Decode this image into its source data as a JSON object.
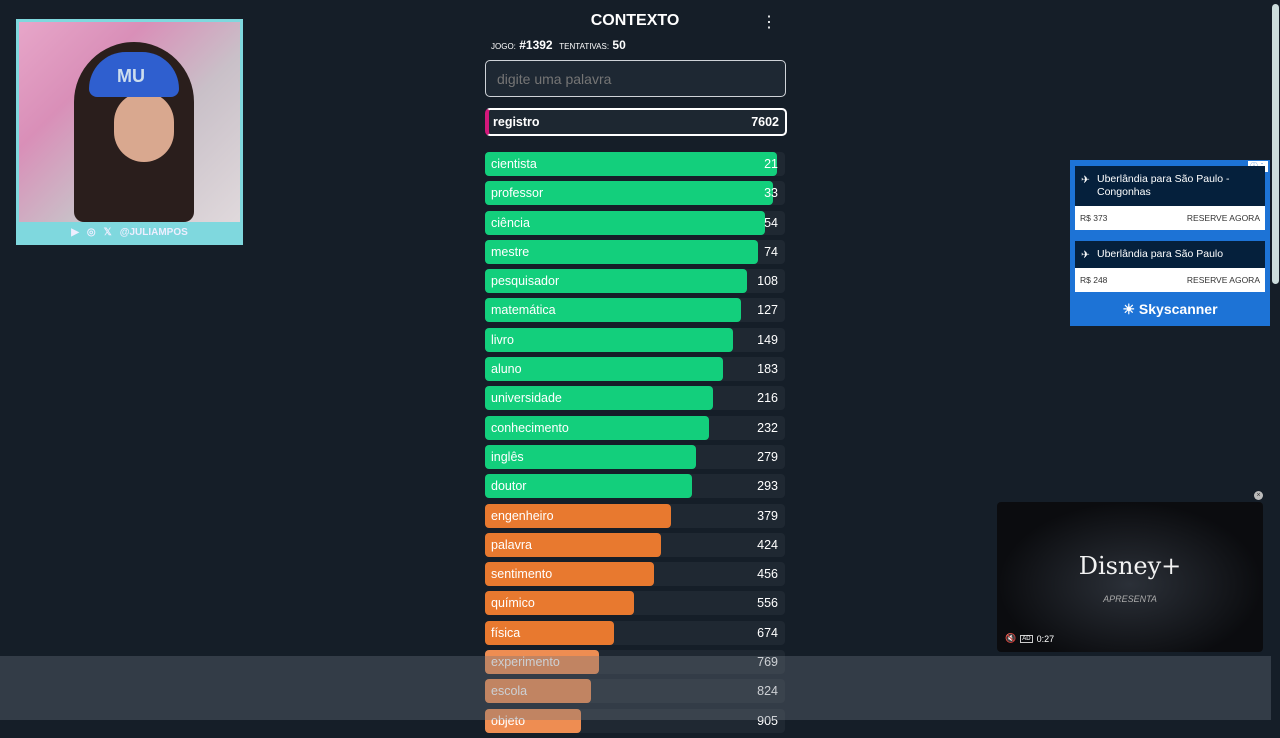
{
  "stream": {
    "handle": "@JULIAMPOS",
    "cap_text": "MU"
  },
  "header": {
    "title": "CONTEXTO",
    "game_label": "JOGO:",
    "game": "#1392",
    "tries_label": "TENTATIVAS:",
    "tries": "50"
  },
  "search": {
    "placeholder": "digite uma palavra",
    "value": ""
  },
  "last_guess": {
    "word": "registro",
    "rank": "7602"
  },
  "colors": {
    "green": "#13cf7c",
    "orange": "#e8792f",
    "light_orange": "#ee8d52",
    "highlight": "#d3187b"
  },
  "guesses": [
    {
      "word": "cientista",
      "rank": "21",
      "proximity": 0.973,
      "color": "green"
    },
    {
      "word": "professor",
      "rank": "33",
      "proximity": 0.96,
      "color": "green"
    },
    {
      "word": "ciência",
      "rank": "54",
      "proximity": 0.933,
      "color": "green"
    },
    {
      "word": "mestre",
      "rank": "74",
      "proximity": 0.91,
      "color": "green"
    },
    {
      "word": "pesquisador",
      "rank": "108",
      "proximity": 0.873,
      "color": "green"
    },
    {
      "word": "matemática",
      "rank": "127",
      "proximity": 0.853,
      "color": "green"
    },
    {
      "word": "livro",
      "rank": "149",
      "proximity": 0.827,
      "color": "green"
    },
    {
      "word": "aluno",
      "rank": "183",
      "proximity": 0.793,
      "color": "green"
    },
    {
      "word": "universidade",
      "rank": "216",
      "proximity": 0.76,
      "color": "green"
    },
    {
      "word": "conhecimento",
      "rank": "232",
      "proximity": 0.747,
      "color": "green"
    },
    {
      "word": "inglês",
      "rank": "279",
      "proximity": 0.703,
      "color": "green"
    },
    {
      "word": "doutor",
      "rank": "293",
      "proximity": 0.69,
      "color": "green"
    },
    {
      "word": "engenheiro",
      "rank": "379",
      "proximity": 0.62,
      "color": "orange"
    },
    {
      "word": "palavra",
      "rank": "424",
      "proximity": 0.587,
      "color": "orange"
    },
    {
      "word": "sentimento",
      "rank": "456",
      "proximity": 0.563,
      "color": "orange"
    },
    {
      "word": "químico",
      "rank": "556",
      "proximity": 0.497,
      "color": "orange"
    },
    {
      "word": "física",
      "rank": "674",
      "proximity": 0.43,
      "color": "orange"
    },
    {
      "word": "experimento",
      "rank": "769",
      "proximity": 0.38,
      "color": "light_orange"
    },
    {
      "word": "escola",
      "rank": "824",
      "proximity": 0.353,
      "color": "light_orange"
    },
    {
      "word": "objeto",
      "rank": "905",
      "proximity": 0.32,
      "color": "light_orange"
    }
  ],
  "ad": {
    "cards": [
      {
        "route": "Uberlândia para São Paulo - Congonhas",
        "price": "R$ 373",
        "cta": "RESERVE AGORA"
      },
      {
        "route": "Uberlândia para São Paulo",
        "price": "R$ 248",
        "cta": "RESERVE AGORA"
      }
    ],
    "brand": "Skyscanner"
  },
  "video_ad": {
    "logo": "Disney+",
    "subtitle": "APRESENTA",
    "badge": "AD",
    "time": "0:27"
  }
}
